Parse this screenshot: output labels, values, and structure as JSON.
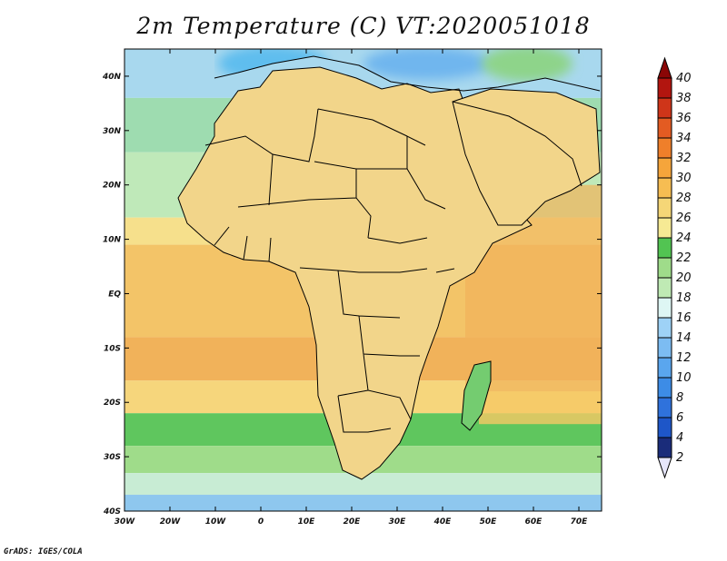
{
  "title": "2m Temperature (C) VT:2020051018",
  "credit": "GrADS: IGES/COLA",
  "map": {
    "type": "filled-contour map",
    "variable": "2m Temperature",
    "units": "C",
    "lon_range": [
      -30,
      75
    ],
    "lat_range": [
      -40,
      45
    ],
    "lon_ticks": [
      "30W",
      "20W",
      "10W",
      "0",
      "10E",
      "20E",
      "30E",
      "40E",
      "50E",
      "60E",
      "70E"
    ],
    "lat_ticks": [
      "40N",
      "30N",
      "20N",
      "10N",
      "EQ",
      "10S",
      "20S",
      "30S",
      "40S"
    ],
    "colors": {
      "ocean_north": "#a8d8ee",
      "ocean_subtropical": "#bfe9b9",
      "ocean_tropical": "#f3c468",
      "ocean_equatorial": "#f1b25a",
      "land_base": "#f2d58a",
      "sahara_hot": "#d9502a",
      "sahel_hot": "#c4301e",
      "arabia_hot": "#d65a2b",
      "highland_green": "#74cc70",
      "south_cool": "#8ec7ee",
      "border": "#000000"
    }
  },
  "colorbar": {
    "levels": [
      "2",
      "4",
      "6",
      "8",
      "10",
      "12",
      "14",
      "16",
      "18",
      "20",
      "22",
      "24",
      "26",
      "28",
      "30",
      "32",
      "34",
      "36",
      "38",
      "40"
    ],
    "colors": [
      "#e6e6fa",
      "#1a2c7a",
      "#1e56c8",
      "#2f72dc",
      "#3d8ce6",
      "#5aa6ee",
      "#7cbcf2",
      "#9ed2f6",
      "#def6f4",
      "#bfeab4",
      "#9fdc8a",
      "#52c452",
      "#f6ea94",
      "#f5d677",
      "#f6bd52",
      "#f5a53b",
      "#ef7f2a",
      "#e35b22",
      "#cf3519",
      "#b2150f",
      "#8a0606"
    ]
  }
}
